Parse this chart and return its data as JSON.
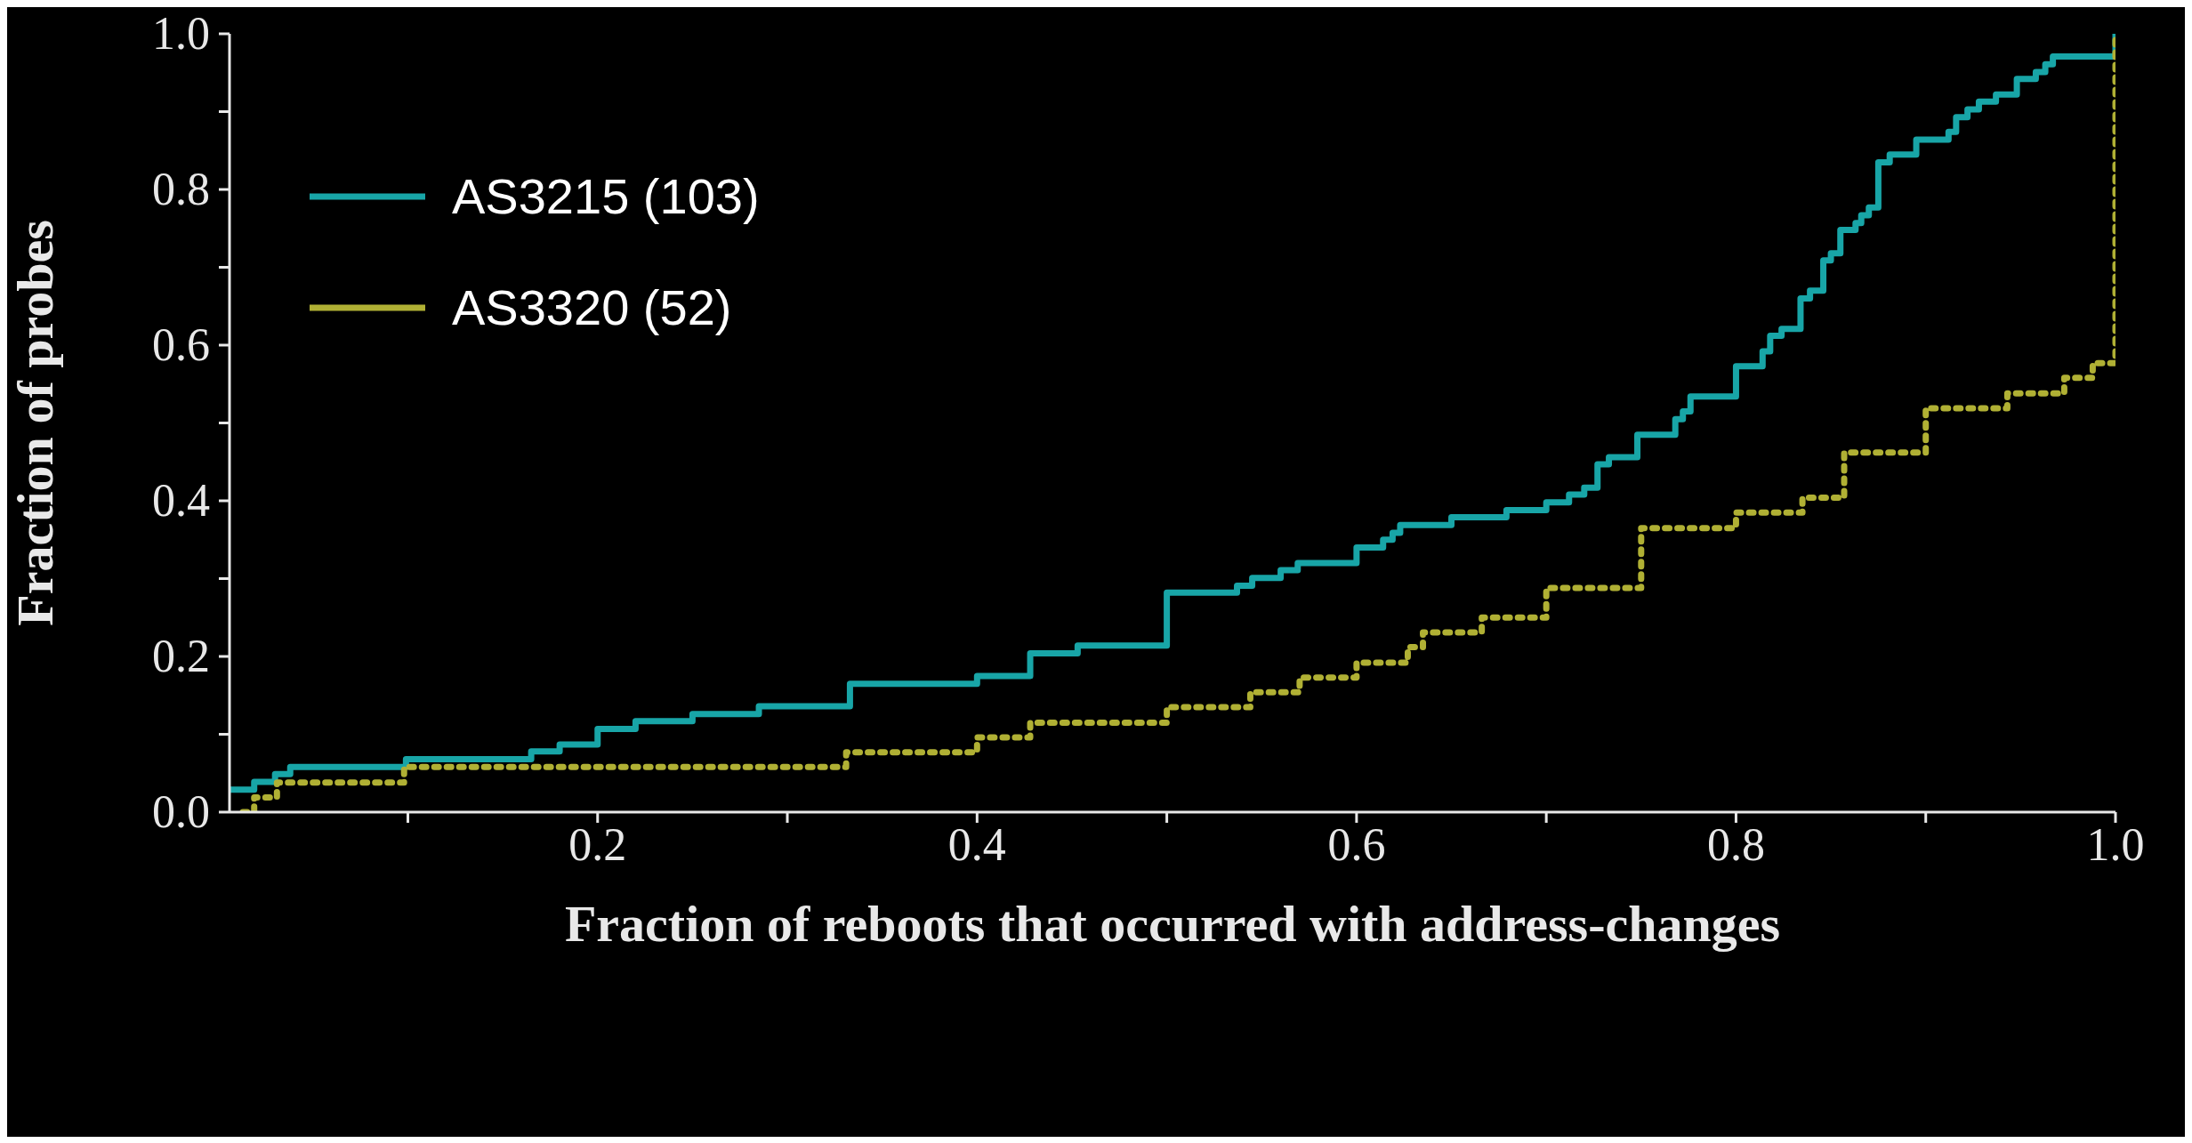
{
  "chart_data": {
    "type": "step",
    "xlabel": "Fraction of reboots that occurred with address-changes",
    "ylabel": "Fraction of probes",
    "xlim": [
      0.006,
      1.0
    ],
    "xticks": [
      {
        "value": 0.1,
        "label": null
      },
      0.2,
      {
        "value": 0.3,
        "label": null
      },
      0.4,
      {
        "value": 0.5,
        "label": null
      },
      0.6,
      {
        "value": 0.7,
        "label": null
      },
      0.8,
      {
        "value": 0.9,
        "label": null
      },
      {
        "value": 1.0,
        "label": "1.0"
      }
    ],
    "ylim": [
      0,
      1.0
    ],
    "yticks": [
      {
        "value": 0,
        "label": "0.0"
      },
      {
        "value": 0.1,
        "label": null
      },
      0.2,
      {
        "value": 0.3,
        "label": null
      },
      0.4,
      {
        "value": 0.5,
        "label": null
      },
      0.6,
      {
        "value": 0.7,
        "label": null
      },
      0.8,
      {
        "value": 0.9,
        "label": null
      },
      {
        "value": 1.0,
        "label": "1.0"
      }
    ],
    "grid": false,
    "legend": "top left",
    "series": [
      {
        "name": "AS3215 (103)",
        "color": "#18a5a7",
        "line_style": "solid",
        "x": [
          0.006,
          0.019,
          0.03,
          0.038,
          0.099,
          0.165,
          0.18,
          0.2,
          0.22,
          0.25,
          0.285,
          0.333,
          0.4,
          0.428,
          0.453,
          0.5,
          0.537,
          0.545,
          0.56,
          0.569,
          0.6,
          0.614,
          0.619,
          0.623,
          0.65,
          0.679,
          0.7,
          0.712,
          0.72,
          0.727,
          0.733,
          0.748,
          0.768,
          0.772,
          0.776,
          0.8,
          0.814,
          0.818,
          0.824,
          0.834,
          0.839,
          0.846,
          0.85,
          0.855,
          0.863,
          0.866,
          0.87,
          0.875,
          0.881,
          0.895,
          0.912,
          0.916,
          0.922,
          0.928,
          0.937,
          0.948,
          0.958,
          0.963,
          0.967,
          1.0
        ],
        "values": [
          0.029,
          0.039,
          0.049,
          0.058,
          0.068,
          0.078,
          0.087,
          0.107,
          0.117,
          0.126,
          0.136,
          0.165,
          0.175,
          0.204,
          0.214,
          0.282,
          0.291,
          0.301,
          0.311,
          0.32,
          0.34,
          0.35,
          0.359,
          0.369,
          0.379,
          0.388,
          0.398,
          0.408,
          0.417,
          0.447,
          0.456,
          0.485,
          0.505,
          0.515,
          0.534,
          0.573,
          0.592,
          0.612,
          0.621,
          0.66,
          0.67,
          0.709,
          0.718,
          0.748,
          0.757,
          0.767,
          0.777,
          0.835,
          0.845,
          0.864,
          0.874,
          0.893,
          0.903,
          0.913,
          0.922,
          0.942,
          0.951,
          0.961,
          0.971,
          1.0
        ]
      },
      {
        "name": "AS3320 (52)",
        "color": "#b0b034",
        "line_style": "dotted",
        "x": [
          0.013,
          0.019,
          0.031,
          0.098,
          0.331,
          0.4,
          0.428,
          0.5,
          0.544,
          0.57,
          0.6,
          0.627,
          0.635,
          0.666,
          0.7,
          0.75,
          0.8,
          0.835,
          0.857,
          0.9,
          0.943,
          0.973,
          0.988,
          1.0
        ],
        "values": [
          0.0,
          0.019,
          0.038,
          0.058,
          0.077,
          0.096,
          0.115,
          0.135,
          0.154,
          0.173,
          0.192,
          0.212,
          0.231,
          0.25,
          0.288,
          0.365,
          0.385,
          0.404,
          0.462,
          0.519,
          0.538,
          0.558,
          0.577,
          1.0
        ]
      }
    ]
  }
}
